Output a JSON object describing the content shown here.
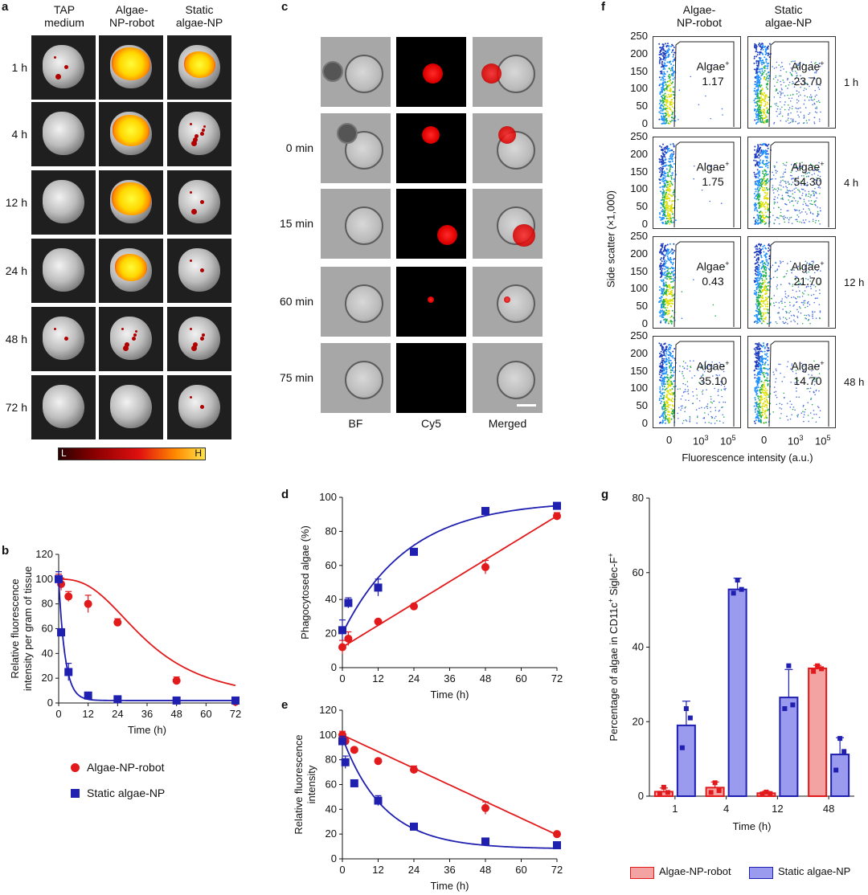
{
  "panel_a": {
    "label": "a",
    "columns": [
      "TAP\nmedium",
      "Algae-\nNP-robot",
      "Static\nalgae-NP"
    ],
    "rows": [
      "1 h",
      "4 h",
      "12 h",
      "24 h",
      "48 h",
      "72 h"
    ],
    "colorbar": {
      "low": "L",
      "high": "H"
    }
  },
  "panel_c": {
    "label": "c",
    "rows": [
      "",
      "0 min",
      "15 min",
      "60 min",
      "75 min"
    ],
    "columns": [
      "BF",
      "Cy5",
      "Merged"
    ]
  },
  "panel_f": {
    "label": "f",
    "columns": [
      "Algae-\nNP-robot",
      "Static\nalgae-NP"
    ],
    "rows": [
      "1 h",
      "4 h",
      "12 h",
      "48 h"
    ],
    "gate_label": "Algae",
    "gate_sup": "+",
    "values_robot": [
      "1.17",
      "1.75",
      "0.43",
      "35.10"
    ],
    "values_static": [
      "23.70",
      "54.30",
      "21.70",
      "14.70"
    ],
    "y_ticks": [
      "250",
      "200",
      "150",
      "100",
      "50",
      "0"
    ],
    "x_ticks": [
      "0",
      "10",
      "3",
      "10",
      "5"
    ],
    "ylabel": "Side scatter (×1,000)",
    "xlabel": "Fluorescence intensity (a.u.)"
  },
  "legend_b": {
    "robot": "Algae-NP-robot",
    "static": "Static algae-NP"
  },
  "legend_g": {
    "robot": "Algae-NP-robot",
    "static": "Static algae-NP"
  },
  "colors": {
    "robot": "#e31a1c",
    "static": "#1f1fb0",
    "robot_fill": "#f4a3a3",
    "static_fill": "#9a9aef"
  },
  "chart_data": [
    {
      "id": "b",
      "label": "b",
      "type": "line",
      "xlabel": "Time (h)",
      "ylabel": "Relative fluorescence\nintensity per gram of tissue",
      "xlim": [
        0,
        72
      ],
      "ylim": [
        0,
        120
      ],
      "xticks": [
        0,
        12,
        24,
        36,
        48,
        60,
        72
      ],
      "yticks": [
        0,
        20,
        40,
        60,
        80,
        100,
        120
      ],
      "series": [
        {
          "name": "Algae-NP-robot",
          "x": [
            0,
            1,
            4,
            12,
            24,
            48,
            72
          ],
          "y": [
            100,
            96,
            86,
            80,
            65,
            18,
            1
          ],
          "err": [
            4,
            5,
            4,
            7,
            3,
            3,
            1
          ]
        },
        {
          "name": "Static algae-NP",
          "x": [
            0,
            1,
            4,
            12,
            24,
            48,
            72
          ],
          "y": [
            100,
            57,
            25,
            6,
            3,
            2,
            2
          ],
          "err": [
            6,
            3,
            7,
            1,
            1,
            1,
            1
          ]
        }
      ]
    },
    {
      "id": "d",
      "label": "d",
      "type": "line",
      "xlabel": "Time (h)",
      "ylabel": "Phagocytosed algae (%)",
      "xlim": [
        0,
        72
      ],
      "ylim": [
        0,
        100
      ],
      "xticks": [
        0,
        12,
        24,
        36,
        48,
        60,
        72
      ],
      "yticks": [
        0,
        20,
        40,
        60,
        80,
        100
      ],
      "series": [
        {
          "name": "Algae-NP-robot",
          "x": [
            0,
            2,
            12,
            24,
            48,
            72
          ],
          "y": [
            12,
            17,
            27,
            36,
            59,
            89
          ],
          "err": [
            4,
            4,
            1,
            1,
            4,
            2
          ]
        },
        {
          "name": "Static algae-NP",
          "x": [
            0,
            2,
            12,
            24,
            48,
            72
          ],
          "y": [
            22,
            38,
            47,
            68,
            92,
            95
          ],
          "err": [
            6,
            3,
            5,
            2,
            1,
            1
          ]
        }
      ]
    },
    {
      "id": "e",
      "label": "e",
      "type": "line",
      "xlabel": "Time (h)",
      "ylabel": "Relative fluorescence\nintensity",
      "xlim": [
        0,
        72
      ],
      "ylim": [
        0,
        120
      ],
      "xticks": [
        0,
        12,
        24,
        36,
        48,
        60,
        72
      ],
      "yticks": [
        0,
        20,
        40,
        60,
        80,
        100,
        120
      ],
      "series": [
        {
          "name": "Algae-NP-robot",
          "x": [
            0,
            1,
            4,
            12,
            24,
            48,
            72
          ],
          "y": [
            100,
            95,
            88,
            79,
            72,
            41,
            20
          ],
          "err": [
            3,
            3,
            1,
            1,
            3,
            5,
            1
          ]
        },
        {
          "name": "Static algae-NP",
          "x": [
            0,
            1,
            4,
            12,
            24,
            48,
            72
          ],
          "y": [
            95,
            78,
            61,
            47,
            26,
            14,
            11
          ],
          "err": [
            4,
            5,
            2,
            4,
            1,
            1,
            1
          ]
        }
      ]
    },
    {
      "id": "g",
      "label": "g",
      "type": "bar",
      "xlabel": "Time (h)",
      "ylabel": "Percentage of algae in CD11c",
      "ylabel_sup1": "+",
      "ylabel_mid": " Siglec-F",
      "ylabel_sup2": "+",
      "ylim": [
        0,
        80
      ],
      "yticks": [
        0,
        20,
        40,
        60,
        80
      ],
      "categories": [
        "1",
        "4",
        "12",
        "48"
      ],
      "series": [
        {
          "name": "Algae-NP-robot",
          "values": [
            1.2,
            2.3,
            0.8,
            34.3
          ],
          "err": [
            1.0,
            1.5,
            0.5,
            0.8
          ],
          "points": [
            [
              0.8,
              1.0,
              2.4
            ],
            [
              1.0,
              1.5,
              3.6
            ],
            [
              0.6,
              0.7,
              1.1
            ],
            [
              33.5,
              34.2,
              35.0
            ]
          ]
        },
        {
          "name": "Static algae-NP",
          "values": [
            19.0,
            55.5,
            26.5,
            11.2
          ],
          "err": [
            6.5,
            3.0,
            7.5,
            4.5
          ],
          "points": [
            [
              13,
              21,
              23.5
            ],
            [
              54.5,
              55.5,
              58
            ],
            [
              23.5,
              24.5,
              35
            ],
            [
              7,
              12,
              15.5
            ]
          ]
        }
      ]
    }
  ]
}
